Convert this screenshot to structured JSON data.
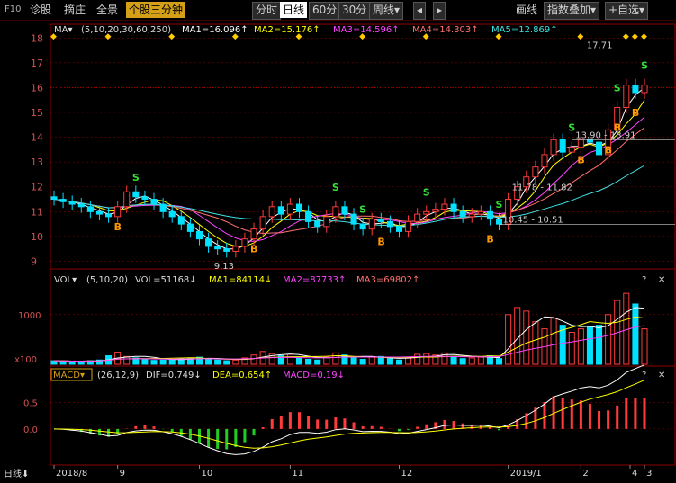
{
  "toolbar": {
    "f10": "F10",
    "left_items": [
      "诊股",
      "摘庄",
      "全景"
    ],
    "active_item": "个股三分钟",
    "periods": [
      "分时",
      "日线",
      "60分",
      "30分",
      "周线▾"
    ],
    "selected_period": "日线",
    "nav_prev": "◂",
    "nav_next": "▸",
    "draw_line": "画线",
    "overlay": "指数叠加▾",
    "add_watch": "+自选▾"
  },
  "colors": {
    "up": "#ff3b3b",
    "down": "#00e0ff",
    "ma1": "#ffffff",
    "ma2": "#ffff00",
    "ma3": "#ff44ff",
    "ma4": "#ff7070",
    "ma5": "#40e0e0",
    "grid": "#7a0000",
    "axis_text": "#d05050",
    "signal_buy": "#ff9900",
    "signal_sell": "#33dd33"
  },
  "chart_data": [
    {
      "type": "candlestick",
      "indicator": "MA",
      "params": "(5,10,20,30,60,250)",
      "values": [
        {
          "name": "MA1",
          "value": "16.096",
          "arrow": "↑"
        },
        {
          "name": "MA2",
          "value": "15.176",
          "arrow": "↑"
        },
        {
          "name": "MA3",
          "value": "14.596",
          "arrow": "↑"
        },
        {
          "name": "MA4",
          "value": "14.303",
          "arrow": "↑"
        },
        {
          "name": "MA5",
          "value": "12.869",
          "arrow": "↑"
        }
      ],
      "ylim": [
        8.8,
        18.3
      ],
      "yticks": [
        9,
        10,
        11,
        12,
        13,
        14,
        15,
        16,
        17,
        18
      ],
      "ref_line": 16,
      "closes": [
        11.5,
        11.4,
        11.3,
        11.2,
        11.0,
        10.9,
        10.8,
        11.2,
        11.8,
        11.6,
        11.5,
        11.3,
        11.0,
        10.8,
        10.5,
        10.2,
        9.9,
        9.6,
        9.5,
        9.4,
        9.6,
        9.9,
        10.3,
        10.8,
        11.2,
        10.9,
        11.3,
        11.0,
        10.6,
        10.4,
        10.8,
        11.2,
        10.9,
        10.5,
        10.3,
        10.7,
        10.6,
        10.4,
        10.2,
        10.6,
        10.9,
        11.0,
        11.1,
        11.3,
        11.0,
        10.8,
        10.9,
        11.0,
        10.7,
        10.5,
        11.5,
        12.0,
        12.4,
        12.8,
        13.3,
        13.9,
        13.4,
        13.6,
        13.9,
        13.8,
        13.3,
        14.3,
        15.2,
        16.1,
        15.8,
        16.1
      ],
      "annotations": [
        {
          "label": "9.13",
          "value": 9.13
        },
        {
          "label": "17.71",
          "value": 17.71
        },
        {
          "label": "13.90 - 13.91",
          "value": 13.9
        },
        {
          "label": "11.78 - 11.82",
          "value": 11.8
        },
        {
          "label": "10.45 - 10.51",
          "value": 10.48
        }
      ],
      "buy_labels": [
        "B",
        "B",
        "B",
        "B",
        "B",
        "B",
        "B",
        "B"
      ],
      "sell_labels": [
        "S",
        "S",
        "S",
        "S",
        "S",
        "S",
        "S",
        "S"
      ]
    },
    {
      "type": "bar",
      "indicator": "VOL",
      "params": "(5,10,20)",
      "values": [
        {
          "name": "VOL",
          "value": "51168",
          "arrow": "↓"
        },
        {
          "name": "MA1",
          "value": "84114",
          "arrow": "↓"
        },
        {
          "name": "MA2",
          "value": "87733",
          "arrow": "↑"
        },
        {
          "name": "MA3",
          "value": "69802",
          "arrow": "↑"
        }
      ],
      "ytick_label": "1000",
      "unit_label": "x100",
      "volumes": [
        50,
        45,
        40,
        45,
        50,
        60,
        120,
        170,
        110,
        90,
        70,
        55,
        60,
        70,
        80,
        90,
        100,
        80,
        60,
        50,
        60,
        90,
        130,
        180,
        150,
        120,
        140,
        90,
        70,
        60,
        100,
        160,
        130,
        90,
        70,
        100,
        110,
        80,
        60,
        90,
        140,
        150,
        130,
        160,
        110,
        80,
        90,
        100,
        120,
        80,
        700,
        800,
        750,
        600,
        500,
        650,
        550,
        450,
        500,
        520,
        550,
        700,
        900,
        1000,
        850,
        500
      ]
    },
    {
      "type": "bar",
      "indicator": "MACD",
      "params": "(26,12,9)",
      "values": [
        {
          "name": "DIF",
          "value": "0.749",
          "arrow": "↓"
        },
        {
          "name": "DEA",
          "value": "0.654",
          "arrow": "↑"
        },
        {
          "name": "MACD",
          "value": "0.19",
          "arrow": "↓"
        }
      ],
      "yticks": [
        "0.5",
        "0.0"
      ],
      "ylim": [
        -0.65,
        0.85
      ]
    }
  ],
  "xaxis": {
    "period_label": "日线",
    "labels": [
      "2018/8",
      "9",
      "10",
      "11",
      "12",
      "2019/1",
      "2",
      "3",
      "4"
    ]
  },
  "controls": {
    "question": "?",
    "close": "✕"
  }
}
